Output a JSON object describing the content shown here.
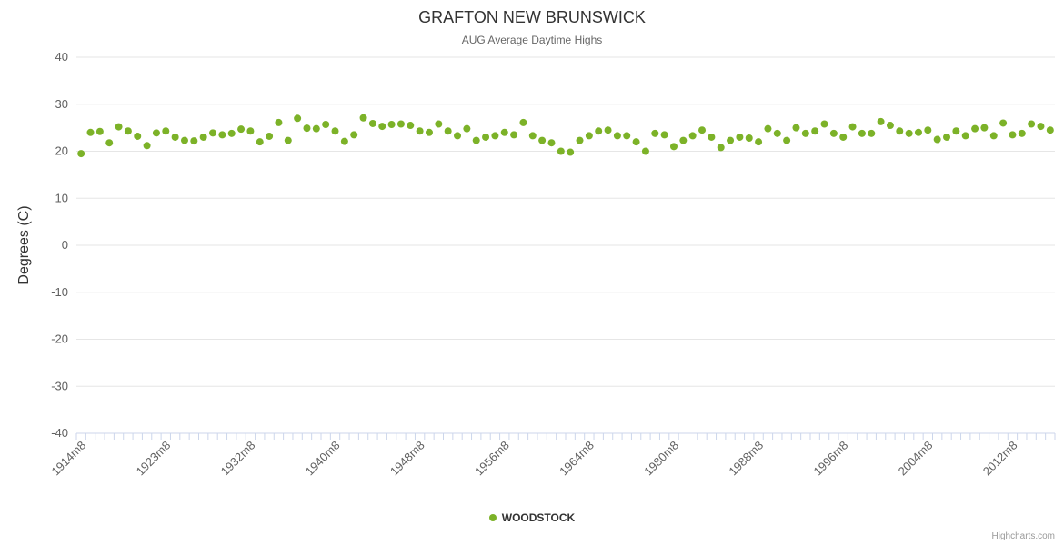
{
  "title": "GRAFTON NEW BRUNSWICK",
  "subtitle": "AUG Average Daytime Highs",
  "credits_label": "Highcharts.com",
  "legend": {
    "series_label": "WOODSTOCK"
  },
  "colors": {
    "point": "#7cb228",
    "grid": "#e6e6e6",
    "axis_line": "#ccd6eb",
    "label": "#606060"
  },
  "chart_data": {
    "type": "scatter",
    "title": "GRAFTON NEW BRUNSWICK",
    "subtitle": "AUG Average Daytime Highs",
    "xlabel": "",
    "ylabel": "Degrees (C)",
    "ylim": [
      -40,
      40
    ],
    "y_tick_interval": 10,
    "y_tick_labels": [
      "-40",
      "-30",
      "-20",
      "-10",
      "0",
      "10",
      "20",
      "30",
      "40"
    ],
    "x_tick_step": 9,
    "x_tick_labels": [
      "1914m8",
      "1923m8",
      "1932m8",
      "1940m8",
      "1948m8",
      "1956m8",
      "1964m8",
      "1980m8",
      "1988m8",
      "1996m8",
      "2004m8",
      "2012m8"
    ],
    "grid": true,
    "legend_position": "bottom-center",
    "series": [
      {
        "name": "WOODSTOCK",
        "color": "#7cb228",
        "values": [
          19.5,
          24,
          24.2,
          21.8,
          25.2,
          24.3,
          23.2,
          21.2,
          23.9,
          24.3,
          23,
          22.3,
          22.2,
          23,
          23.9,
          23.5,
          23.8,
          24.7,
          24.3,
          22,
          23.2,
          26.1,
          22.3,
          27,
          24.9,
          24.8,
          25.7,
          24.3,
          22.1,
          23.5,
          27.1,
          25.9,
          25.3,
          25.7,
          25.8,
          25.5,
          24.3,
          24,
          25.8,
          24.3,
          23.3,
          24.8,
          22.3,
          23,
          23.3,
          24,
          23.5,
          26.1,
          23.3,
          22.3,
          21.8,
          20,
          19.8,
          22.3,
          23.3,
          24.3,
          24.5,
          23.3,
          23.3,
          22,
          20,
          23.8,
          23.5,
          21,
          22.3,
          23.3,
          24.5,
          23,
          20.8,
          22.3,
          23,
          22.8,
          22,
          24.8,
          23.8,
          22.3,
          25,
          23.8,
          24.3,
          25.8,
          23.8,
          23,
          25.2,
          23.8,
          23.8,
          26.3,
          25.5,
          24.3,
          23.8,
          24,
          24.5,
          22.5,
          23,
          24.3,
          23.3,
          24.8,
          25,
          23.3,
          26,
          23.5,
          23.8,
          25.8,
          25.3,
          24.5
        ]
      }
    ]
  }
}
